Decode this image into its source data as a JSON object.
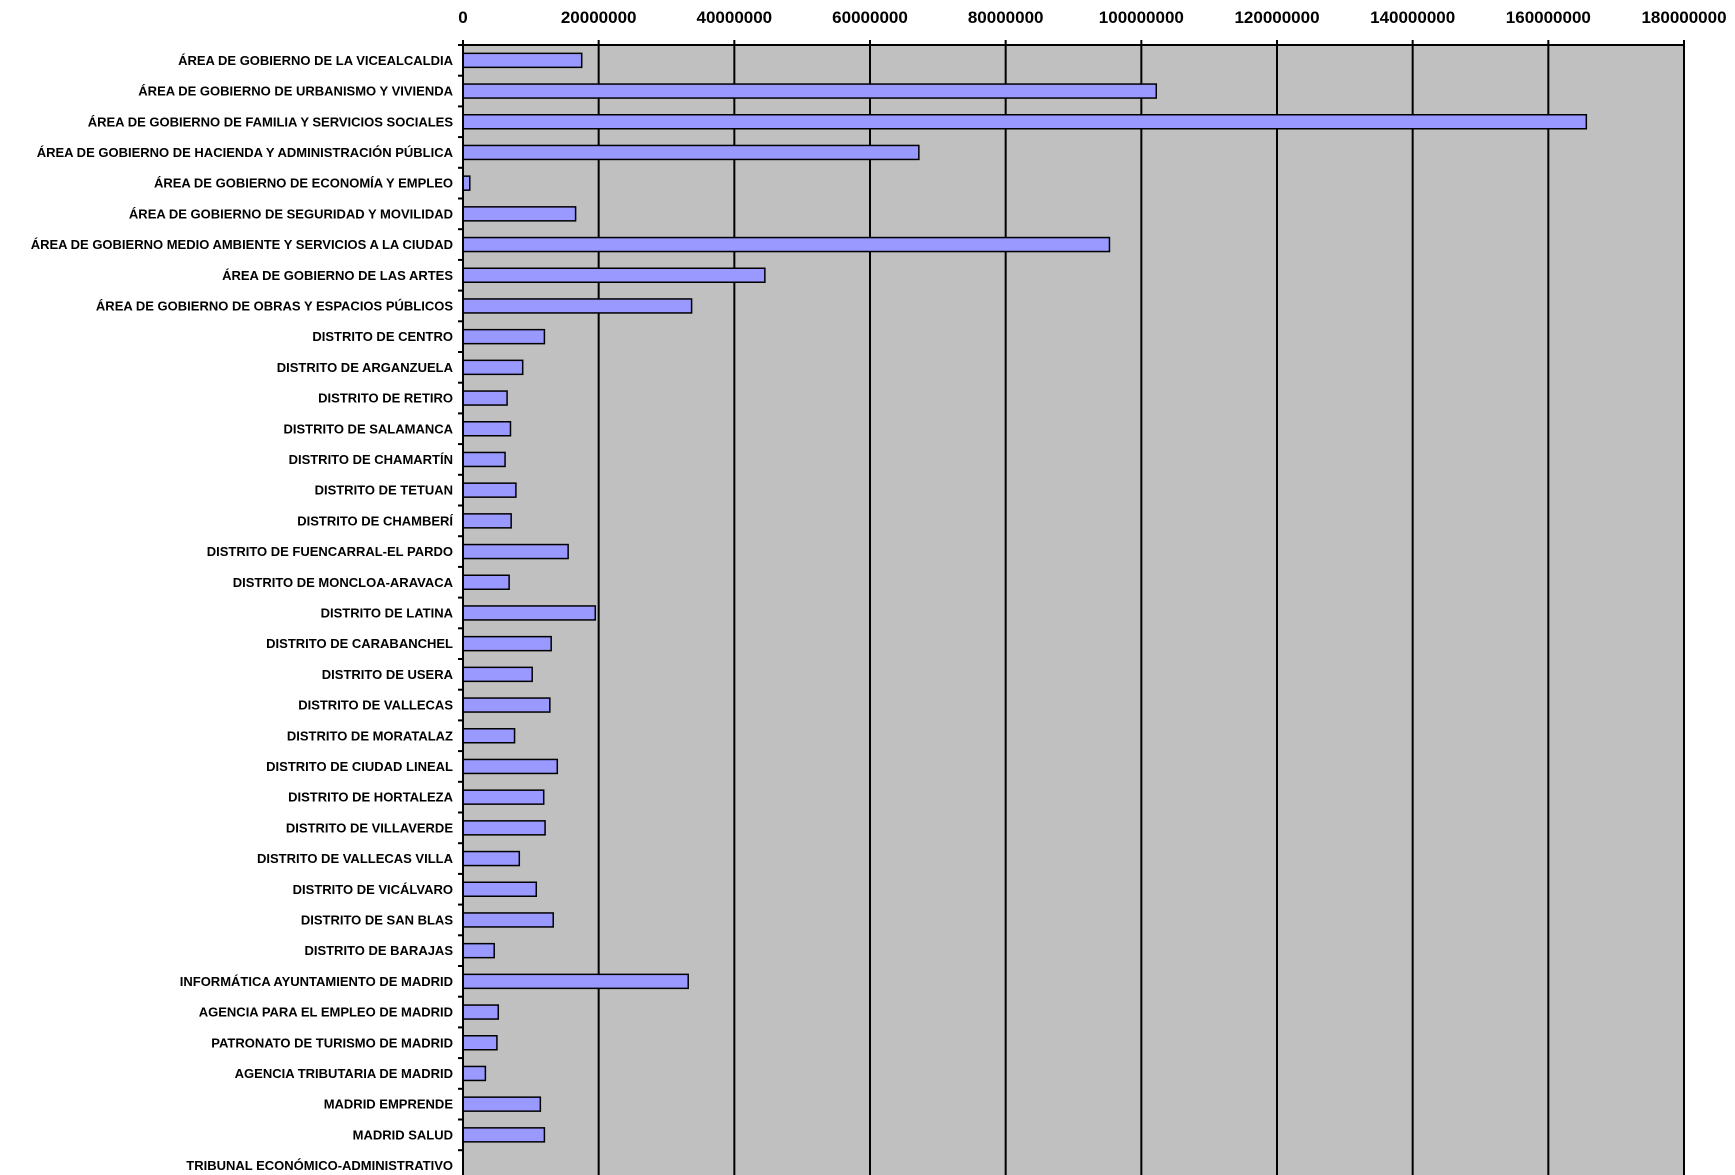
{
  "chart_data": {
    "type": "bar",
    "orientation": "horizontal",
    "title": "",
    "xlabel": "",
    "ylabel": "",
    "xlim": [
      0,
      180000000
    ],
    "x_ticks": [
      0,
      20000000,
      40000000,
      60000000,
      80000000,
      100000000,
      120000000,
      140000000,
      160000000,
      180000000
    ],
    "x_tick_labels": [
      "0",
      "20000000",
      "40000000",
      "60000000",
      "80000000",
      "100000000",
      "120000000",
      "140000000",
      "160000000",
      "180000000"
    ],
    "x_axis_position": "top",
    "grid": "vertical",
    "legend": "none",
    "categories": [
      "ÁREA DE GOBIERNO DE LA VICEALCALDIA",
      "ÁREA DE GOBIERNO DE URBANISMO Y VIVIENDA",
      "ÁREA DE GOBIERNO DE FAMILIA Y SERVICIOS SOCIALES",
      "ÁREA DE GOBIERNO DE HACIENDA Y ADMINISTRACIÓN PÚBLICA",
      "ÁREA DE GOBIERNO DE ECONOMÍA Y EMPLEO",
      "ÁREA DE GOBIERNO DE SEGURIDAD Y MOVILIDAD",
      "ÁREA DE GOBIERNO MEDIO AMBIENTE Y SERVICIOS A LA CIUDAD",
      "ÁREA DE GOBIERNO DE LAS ARTES",
      "ÁREA DE GOBIERNO DE OBRAS Y ESPACIOS PÚBLICOS",
      "DISTRITO DE CENTRO",
      "DISTRITO DE ARGANZUELA",
      "DISTRITO DE RETIRO",
      "DISTRITO DE SALAMANCA",
      "DISTRITO DE CHAMARTÍN",
      "DISTRITO DE TETUAN",
      "DISTRITO DE CHAMBERÍ",
      "DISTRITO DE FUENCARRAL-EL PARDO",
      "DISTRITO DE MONCLOA-ARAVACA",
      "DISTRITO DE LATINA",
      "DISTRITO DE CARABANCHEL",
      "DISTRITO DE USERA",
      "DISTRITO DE VALLECAS",
      "DISTRITO DE MORATALAZ",
      "DISTRITO DE CIUDAD LINEAL",
      "DISTRITO DE HORTALEZA",
      "DISTRITO DE VILLAVERDE",
      "DISTRITO DE VALLECAS VILLA",
      "DISTRITO DE VICÁLVARO",
      "DISTRITO DE SAN BLAS",
      "DISTRITO DE BARAJAS",
      "INFORMÁTICA AYUNTAMIENTO DE MADRID",
      "AGENCIA PARA EL EMPLEO DE MADRID",
      "PATRONATO DE TURISMO DE MADRID",
      "AGENCIA TRIBUTARIA DE MADRID",
      "MADRID EMPRENDE",
      "MADRID SALUD",
      "TRIBUNAL ECONÓMICO-ADMINISTRATIVO"
    ],
    "values": [
      17500000,
      102200000,
      165600000,
      67200000,
      1000000,
      16600000,
      95300000,
      44500000,
      33700000,
      12000000,
      8800000,
      6500000,
      7000000,
      6200000,
      7800000,
      7100000,
      15500000,
      6800000,
      19500000,
      13000000,
      10200000,
      12800000,
      7600000,
      13900000,
      11900000,
      12100000,
      8300000,
      10800000,
      13300000,
      4600000,
      33200000,
      5200000,
      5000000,
      3300000,
      11400000,
      12000000,
      0
    ],
    "colors": {
      "bar_fill": "#9999ff",
      "bar_stroke": "#000000",
      "plot_background": "#c0c0c0",
      "gridline": "#000000"
    }
  }
}
